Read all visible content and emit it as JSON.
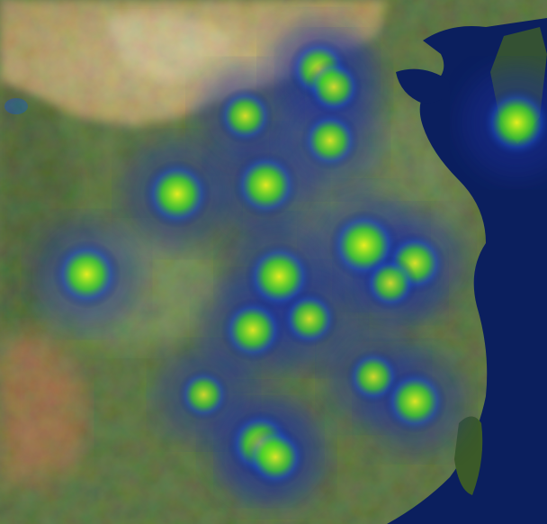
{
  "map": {
    "basemap": "satellite-imagery",
    "overlay": "heatmap",
    "region": "Eastern China"
  },
  "heatmap": {
    "color_ramp": [
      "#0a1a78",
      "#1633a8",
      "#2f7ad6",
      "#3bd62a",
      "#7dea1e",
      "#e6f21a"
    ],
    "hotspots": [
      {
        "lon": 116.4,
        "lat": 39.9,
        "intensity": 0.7
      },
      {
        "lon": 117.2,
        "lat": 39.1,
        "intensity": 0.6
      },
      {
        "lon": 118.8,
        "lat": 32.0,
        "intensity": 0.9
      },
      {
        "lon": 121.5,
        "lat": 31.2,
        "intensity": 0.7
      },
      {
        "lon": 120.2,
        "lat": 30.3,
        "intensity": 0.55
      },
      {
        "lon": 113.6,
        "lat": 34.7,
        "intensity": 0.8
      },
      {
        "lon": 108.9,
        "lat": 34.3,
        "intensity": 0.85
      },
      {
        "lon": 112.5,
        "lat": 37.8,
        "intensity": 0.6
      },
      {
        "lon": 117.0,
        "lat": 36.7,
        "intensity": 0.65
      },
      {
        "lon": 114.3,
        "lat": 30.6,
        "intensity": 0.85
      },
      {
        "lon": 113.3,
        "lat": 23.1,
        "intensity": 0.8
      },
      {
        "lon": 114.1,
        "lat": 22.5,
        "intensity": 0.7
      },
      {
        "lon": 112.9,
        "lat": 28.2,
        "intensity": 0.75
      },
      {
        "lon": 115.9,
        "lat": 28.7,
        "intensity": 0.6
      },
      {
        "lon": 119.3,
        "lat": 26.1,
        "intensity": 0.55
      },
      {
        "lon": 126.9,
        "lat": 37.5,
        "intensity": 0.9
      },
      {
        "lon": 121.5,
        "lat": 25.0,
        "intensity": 0.75
      },
      {
        "lon": 110.3,
        "lat": 25.3,
        "intensity": 0.5
      },
      {
        "lon": 104.1,
        "lat": 30.7,
        "intensity": 0.85
      }
    ]
  }
}
